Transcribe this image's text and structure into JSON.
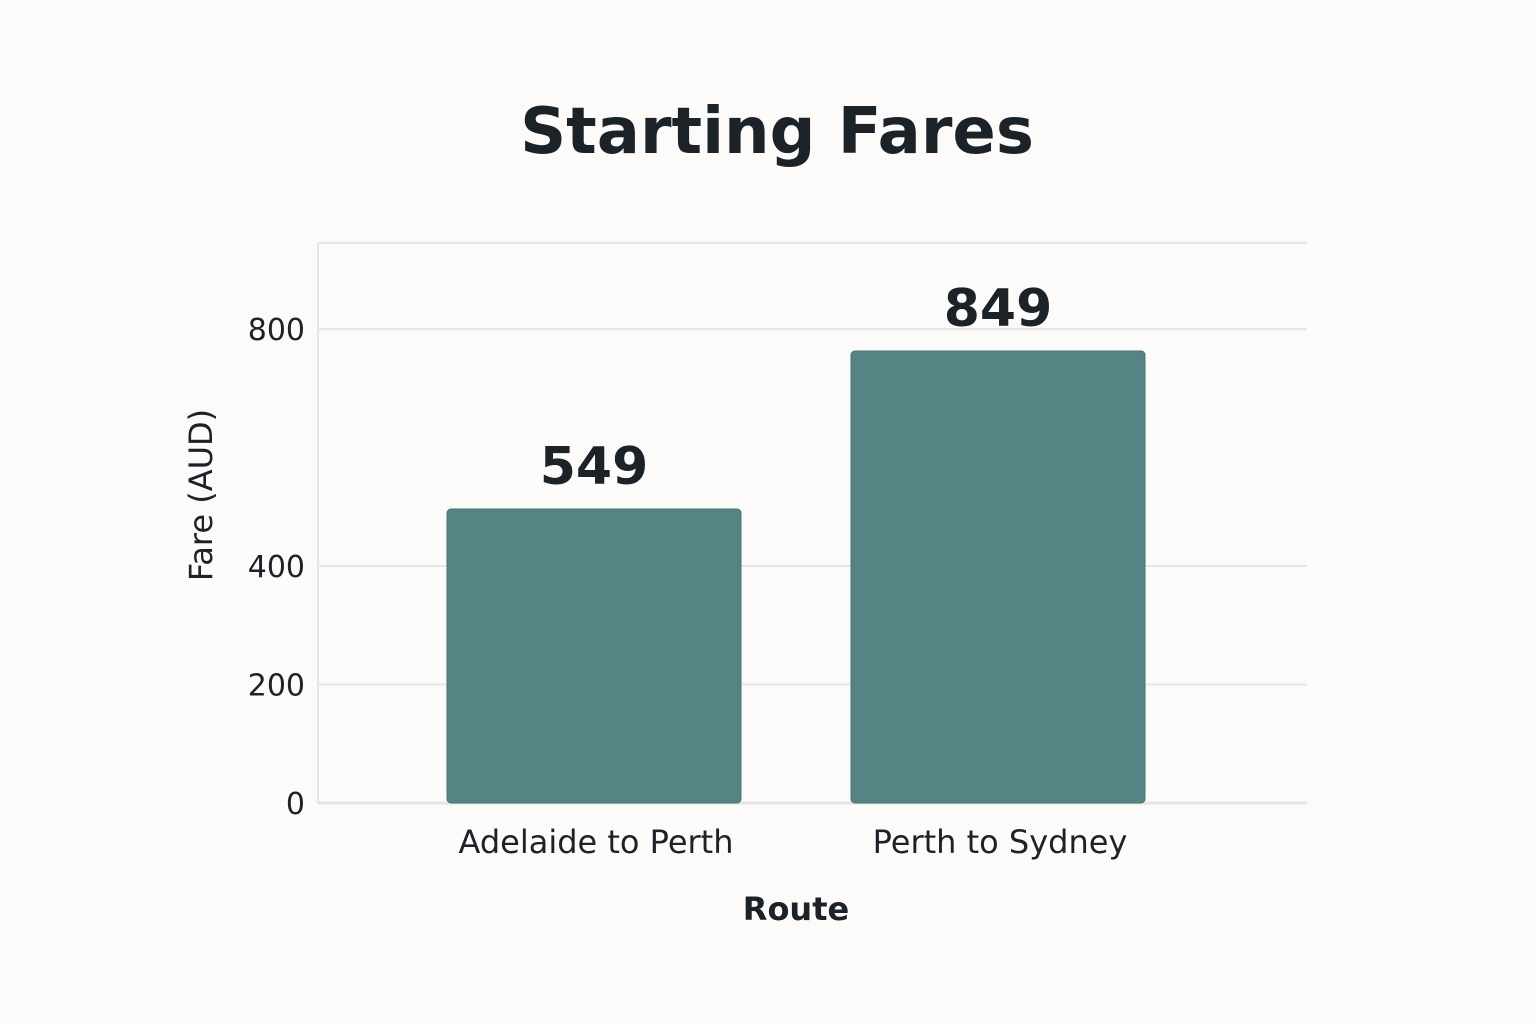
{
  "colors": {
    "background": "#fcfbf9",
    "bar": "#568384",
    "grid": "#e6e6e4",
    "text": "#1b2228"
  },
  "chart_data": {
    "type": "bar",
    "title": "Starting Fares",
    "xlabel": "Route",
    "ylabel": "Fare (AUD)",
    "categories": [
      "Adelaide to Perth",
      "Perth to Sydney"
    ],
    "values": [
      549,
      849
    ],
    "data_labels": [
      "549",
      "849"
    ],
    "ylim": [
      0,
      1000
    ],
    "yticks": [
      0,
      200,
      400,
      800
    ],
    "grid": true,
    "legend": "none"
  }
}
